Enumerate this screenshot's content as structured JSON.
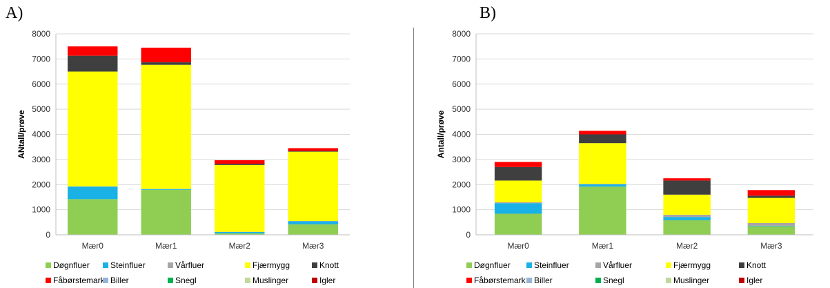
{
  "chart_data": [
    {
      "panel_label": "A)",
      "type": "bar",
      "stacked": true,
      "ylabel": "ANtall/prøve",
      "ylim": [
        0,
        8000
      ],
      "yticks": [
        0,
        1000,
        2000,
        3000,
        4000,
        5000,
        6000,
        7000,
        8000
      ],
      "grid": true,
      "legend": "bottom",
      "categories": [
        "Mær0",
        "Mær1",
        "Mær2",
        "Mær3"
      ],
      "series": [
        {
          "name": "Døgnfluer",
          "color": "#8fce53",
          "values": [
            1420,
            1790,
            60,
            420
          ]
        },
        {
          "name": "Steinfluer",
          "color": "#19b1e6",
          "values": [
            500,
            30,
            50,
            120
          ]
        },
        {
          "name": "Vårfluer",
          "color": "#a6a6a6",
          "values": [
            10,
            10,
            10,
            10
          ]
        },
        {
          "name": "Fjærmygg",
          "color": "#ffff00",
          "values": [
            4570,
            4940,
            2660,
            2760
          ]
        },
        {
          "name": "Knott",
          "color": "#3f3f3f",
          "values": [
            630,
            100,
            50,
            30
          ]
        },
        {
          "name": "Fåbørstemark",
          "color": "#ff0000",
          "values": [
            370,
            580,
            140,
            110
          ]
        },
        {
          "name": "Biller",
          "color": "#95b3d7",
          "values": [
            0,
            0,
            0,
            0
          ]
        },
        {
          "name": "Snegl",
          "color": "#00b050",
          "values": [
            0,
            0,
            0,
            0
          ]
        },
        {
          "name": "Muslinger",
          "color": "#c4d79b",
          "values": [
            0,
            0,
            0,
            0
          ]
        },
        {
          "name": "Igler",
          "color": "#c00000",
          "values": [
            0,
            0,
            0,
            0
          ]
        }
      ]
    },
    {
      "panel_label": "B)",
      "type": "bar",
      "stacked": true,
      "ylabel": "Antall/prøve",
      "ylim": [
        0,
        8000
      ],
      "yticks": [
        0,
        1000,
        2000,
        3000,
        4000,
        5000,
        6000,
        7000,
        8000
      ],
      "grid": true,
      "legend": "bottom",
      "categories": [
        "Mær0",
        "Mær1",
        "Mær2",
        "Mær3"
      ],
      "series": [
        {
          "name": "Døgnfluer",
          "color": "#8fce53",
          "values": [
            840,
            1920,
            580,
            340
          ]
        },
        {
          "name": "Steinfluer",
          "color": "#19b1e6",
          "values": [
            420,
            90,
            130,
            20
          ]
        },
        {
          "name": "Vårfluer",
          "color": "#a6a6a6",
          "values": [
            40,
            20,
            90,
            110
          ]
        },
        {
          "name": "Fjærmygg",
          "color": "#ffff00",
          "values": [
            860,
            1620,
            800,
            1000
          ]
        },
        {
          "name": "Knott",
          "color": "#3f3f3f",
          "values": [
            540,
            350,
            560,
            90
          ]
        },
        {
          "name": "Fåbørstemark",
          "color": "#ff0000",
          "values": [
            200,
            140,
            90,
            220
          ]
        },
        {
          "name": "Biller",
          "color": "#95b3d7",
          "values": [
            0,
            0,
            0,
            0
          ]
        },
        {
          "name": "Snegl",
          "color": "#00b050",
          "values": [
            0,
            0,
            0,
            0
          ]
        },
        {
          "name": "Muslinger",
          "color": "#c4d79b",
          "values": [
            0,
            0,
            0,
            0
          ]
        },
        {
          "name": "Igler",
          "color": "#c00000",
          "values": [
            0,
            0,
            0,
            0
          ]
        }
      ]
    }
  ]
}
